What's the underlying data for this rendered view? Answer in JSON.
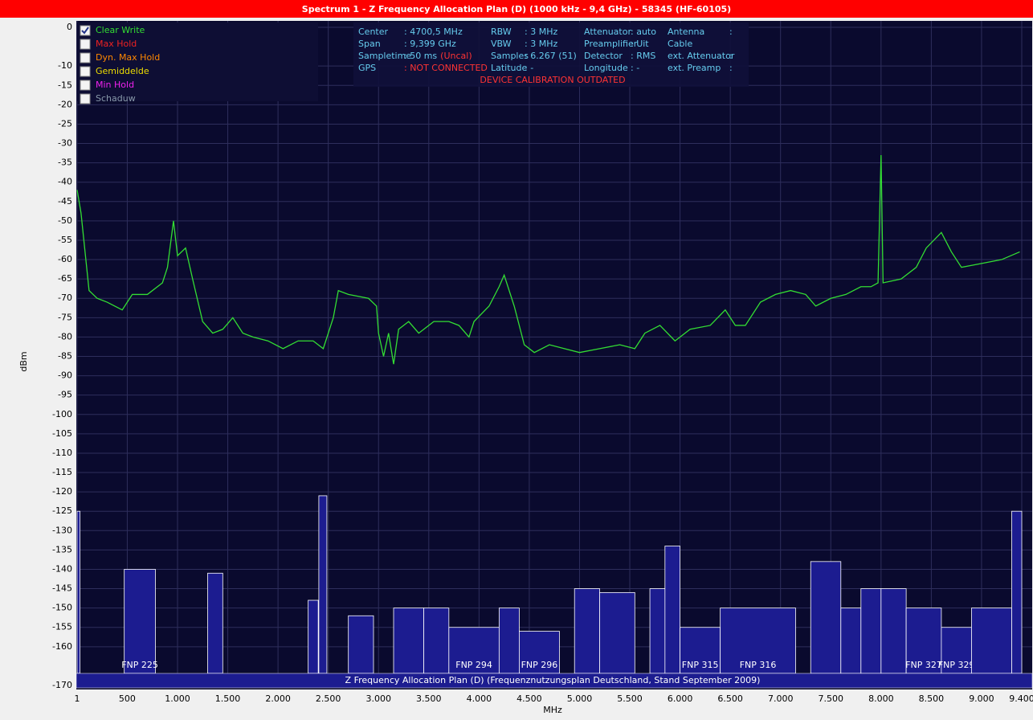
{
  "window": {
    "title": "Spectrum 1 - Z Frequency Allocation Plan (D) (1000 kHz - 9,4 GHz) - 58345 (HF-60105)"
  },
  "traces": [
    {
      "name": "Clear Write",
      "color": "#33dd33",
      "checked": true
    },
    {
      "name": "Max Hold",
      "color": "#ee2222",
      "checked": false
    },
    {
      "name": "Dyn. Max Hold",
      "color": "#ff8800",
      "checked": false
    },
    {
      "name": "Gemiddelde",
      "color": "#eedd00",
      "checked": false
    },
    {
      "name": "Min Hold",
      "color": "#ee22ee",
      "checked": false
    },
    {
      "name": "Schaduw",
      "color": "#8899aa",
      "checked": false
    }
  ],
  "info": [
    [
      {
        "label": "Center",
        "value": ": 4700,5 MHz"
      },
      {
        "label": "Span",
        "value": ": 9,399 GHz"
      },
      {
        "label": "Sampletime",
        "value": ": 50 ms",
        "note": "(Uncal)"
      },
      {
        "label": "GPS",
        "value": ": NOT CONNECTED",
        "alert": true
      }
    ],
    [
      {
        "label": "RBW",
        "value": ": 3 MHz"
      },
      {
        "label": "VBW",
        "value": ": 3 MHz"
      },
      {
        "label": "Samples",
        "value": ": 6.267 (51)"
      },
      {
        "label": "Latitude",
        "value": ": -"
      }
    ],
    [
      {
        "label": "Attenuator",
        "value": ": auto"
      },
      {
        "label": "Preamplifier",
        "value": ": Uit"
      },
      {
        "label": "Detector",
        "value": ": RMS"
      },
      {
        "label": "Longitude",
        "value": ": -"
      }
    ],
    [
      {
        "label": "Antenna",
        "value": ":"
      },
      {
        "label": "Cable"
      },
      {
        "label": "ext. Attenuator",
        "value": ":"
      },
      {
        "label": "ext. Preamp",
        "value": ":"
      }
    ]
  ],
  "warning": "DEVICE CALIBRATION OUTDATED",
  "chart_data": {
    "type": "line",
    "x_label": "MHz",
    "y_label": "dBm",
    "x": [
      1,
      40,
      80,
      120,
      200,
      300,
      450,
      550,
      700,
      850,
      900,
      960,
      1000,
      1080,
      1150,
      1250,
      1350,
      1450,
      1550,
      1650,
      1750,
      1900,
      2050,
      2200,
      2350,
      2450,
      2550,
      2600,
      2700,
      2900,
      2980,
      3000,
      3050,
      3100,
      3150,
      3200,
      3300,
      3400,
      3550,
      3700,
      3800,
      3900,
      3950,
      4100,
      4200,
      4250,
      4350,
      4450,
      4550,
      4700,
      4850,
      5000,
      5200,
      5400,
      5550,
      5650,
      5800,
      5950,
      6100,
      6300,
      6450,
      6550,
      6650,
      6800,
      6950,
      7100,
      7250,
      7350,
      7500,
      7650,
      7800,
      7900,
      7970,
      8000,
      8020,
      8200,
      8350,
      8450,
      8600,
      8700,
      8800,
      9000,
      9200,
      9380
    ],
    "series": [
      {
        "name": "Clear Write",
        "color": "#33dd33",
        "values": [
          -42,
          -48,
          -58,
          -68,
          -70,
          -71,
          -73,
          -69,
          -69,
          -66,
          -62,
          -50,
          -59,
          -57,
          -65,
          -76,
          -79,
          -78,
          -75,
          -79,
          -80,
          -81,
          -83,
          -81,
          -81,
          -83,
          -75,
          -68,
          -69,
          -70,
          -72,
          -79,
          -85,
          -79,
          -87,
          -78,
          -76,
          -79,
          -76,
          -76,
          -77,
          -80,
          -76,
          -72,
          -67,
          -64,
          -72,
          -82,
          -84,
          -82,
          -83,
          -84,
          -83,
          -82,
          -83,
          -79,
          -77,
          -81,
          -78,
          -77,
          -73,
          -77,
          -77,
          -71,
          -69,
          -68,
          -69,
          -72,
          -70,
          -69,
          -67,
          -67,
          -66,
          -33,
          -66,
          -65,
          -62,
          -57,
          -53,
          -58,
          -62,
          -61,
          -60,
          -58
        ]
      }
    ],
    "xlim": [
      1,
      9400
    ],
    "ylim": [
      -170,
      0
    ],
    "xticks": [
      1,
      500,
      {
        "value": 1000,
        "label": "1.000"
      },
      {
        "value": 1500,
        "label": "1.500"
      },
      {
        "value": 2000,
        "label": "2.000"
      },
      {
        "value": 2500,
        "label": "2.500"
      },
      {
        "value": 3000,
        "label": "3.000"
      },
      {
        "value": 3500,
        "label": "3.500"
      },
      {
        "value": 4000,
        "label": "4.000"
      },
      {
        "value": 4500,
        "label": "4.500"
      },
      {
        "value": 5000,
        "label": "5.000"
      },
      {
        "value": 5500,
        "label": "5.500"
      },
      {
        "value": 6000,
        "label": "6.000"
      },
      {
        "value": 6500,
        "label": "6.500"
      },
      {
        "value": 7000,
        "label": "7.000"
      },
      {
        "value": 7500,
        "label": "7.500"
      },
      {
        "value": 8000,
        "label": "8.000"
      },
      {
        "value": 8500,
        "label": "8.500"
      },
      {
        "value": 9000,
        "label": "9.000"
      },
      {
        "value": 9400,
        "label": "9.400"
      }
    ],
    "yticks": [
      0,
      -10,
      -15,
      -20,
      -25,
      -30,
      -35,
      -40,
      -45,
      -50,
      -55,
      -60,
      -65,
      -70,
      -75,
      -80,
      -85,
      -90,
      -95,
      -100,
      -105,
      -110,
      -115,
      -120,
      -125,
      -130,
      -135,
      -140,
      -145,
      -150,
      -155,
      -160,
      -170
    ],
    "grid": true,
    "allocations": {
      "caption": "Z Frequency Allocation Plan (D) (Frequenznutzungsplan Deutschland, Stand September 2009)",
      "color": "#1c1c90",
      "blocks": [
        {
          "x0": 1,
          "x1": 30,
          "top": -125
        },
        {
          "x0": 470,
          "x1": 780,
          "top": -140,
          "label": "FNP 225"
        },
        {
          "x0": 1300,
          "x1": 1450,
          "top": -141
        },
        {
          "x0": 2300,
          "x1": 2400,
          "top": -148
        },
        {
          "x0": 2406,
          "x1": 2486,
          "top": -121
        },
        {
          "x0": 2700,
          "x1": 2950,
          "top": -152
        },
        {
          "x0": 3150,
          "x1": 3450,
          "top": -150
        },
        {
          "x0": 3450,
          "x1": 3700,
          "top": -150
        },
        {
          "x0": 3700,
          "x1": 4200,
          "top": -155,
          "label": "FNP 294"
        },
        {
          "x0": 4200,
          "x1": 4400,
          "top": -150
        },
        {
          "x0": 4400,
          "x1": 4800,
          "top": -156,
          "label": "FNP 296"
        },
        {
          "x0": 4950,
          "x1": 5200,
          "top": -145
        },
        {
          "x0": 5200,
          "x1": 5550,
          "top": -146
        },
        {
          "x0": 5700,
          "x1": 5900,
          "top": -145
        },
        {
          "x0": 5850,
          "x1": 6000,
          "top": -134
        },
        {
          "x0": 6000,
          "x1": 6400,
          "top": -155,
          "label": "FNP 315"
        },
        {
          "x0": 6400,
          "x1": 7150,
          "top": -150,
          "label": "FNP 316"
        },
        {
          "x0": 7300,
          "x1": 7600,
          "top": -138
        },
        {
          "x0": 7600,
          "x1": 7800,
          "top": -150
        },
        {
          "x0": 7800,
          "x1": 8000,
          "top": -145
        },
        {
          "x0": 8000,
          "x1": 8250,
          "top": -145
        },
        {
          "x0": 8250,
          "x1": 8600,
          "top": -150,
          "label": "FNP 327"
        },
        {
          "x0": 8600,
          "x1": 8900,
          "top": -155,
          "label": "FNP 329"
        },
        {
          "x0": 8900,
          "x1": 9300,
          "top": -150
        },
        {
          "x0": 9300,
          "x1": 9400,
          "top": -125
        }
      ]
    }
  }
}
